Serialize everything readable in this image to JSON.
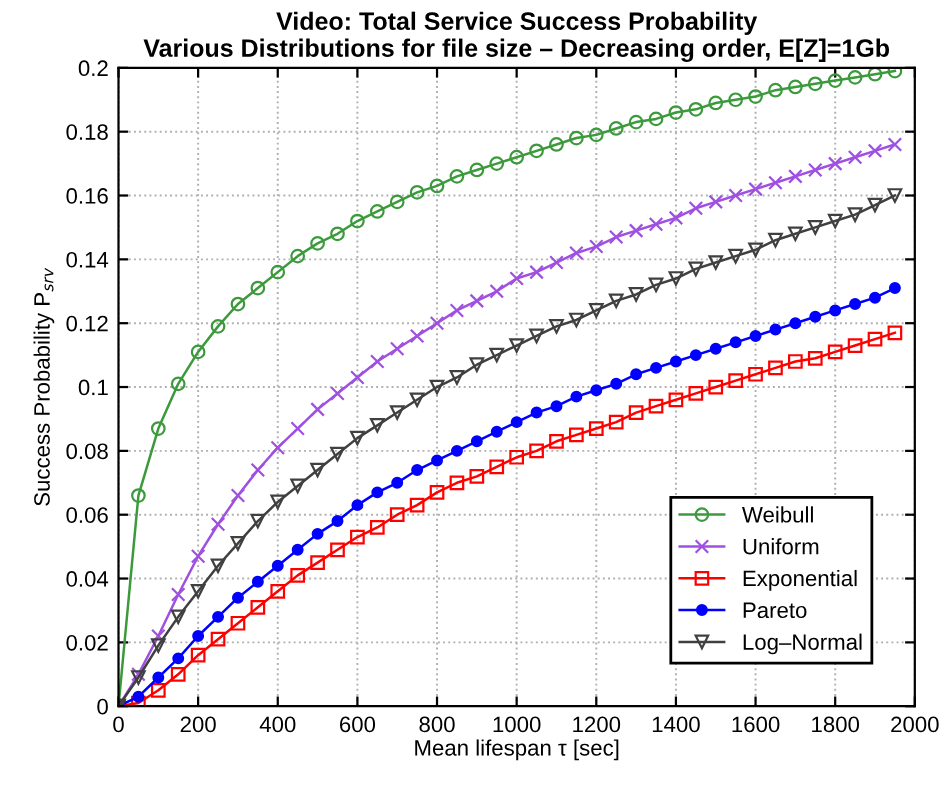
{
  "chart_data": {
    "type": "line",
    "title": "Video: Total Service Success Probability\nVarious Distributions for file size – Decreasing order, E[Z]=1Gb",
    "xlabel": "Mean lifespan τ [sec]",
    "ylabel": "Success Probability P$_{srv}$",
    "x": [
      0,
      50,
      100,
      150,
      200,
      250,
      300,
      350,
      400,
      450,
      500,
      550,
      600,
      650,
      700,
      750,
      800,
      850,
      900,
      950,
      1000,
      1050,
      1100,
      1150,
      1200,
      1250,
      1300,
      1350,
      1400,
      1450,
      1500,
      1550,
      1600,
      1650,
      1700,
      1750,
      1800,
      1850,
      1900,
      1950
    ],
    "series": [
      {
        "name": "Weibull",
        "color": "#3c9a3c",
        "marker": "circle",
        "values": [
          0,
          0.066,
          0.087,
          0.101,
          0.111,
          0.119,
          0.126,
          0.131,
          0.136,
          0.141,
          0.145,
          0.148,
          0.152,
          0.155,
          0.158,
          0.161,
          0.163,
          0.166,
          0.168,
          0.17,
          0.172,
          0.174,
          0.176,
          0.178,
          0.179,
          0.181,
          0.183,
          0.184,
          0.186,
          0.187,
          0.189,
          0.19,
          0.191,
          0.193,
          0.194,
          0.195,
          0.196,
          0.197,
          0.198,
          0.199
        ]
      },
      {
        "name": "Uniform",
        "color": "#a050e0",
        "marker": "cross",
        "values": [
          0,
          0.01,
          0.022,
          0.035,
          0.047,
          0.057,
          0.066,
          0.074,
          0.081,
          0.087,
          0.093,
          0.098,
          0.103,
          0.108,
          0.112,
          0.116,
          0.12,
          0.124,
          0.127,
          0.13,
          0.134,
          0.136,
          0.139,
          0.142,
          0.144,
          0.147,
          0.149,
          0.151,
          0.153,
          0.156,
          0.158,
          0.16,
          0.162,
          0.164,
          0.166,
          0.168,
          0.17,
          0.172,
          0.174,
          0.176
        ]
      },
      {
        "name": "Exponential",
        "color": "#ff0000",
        "marker": "square",
        "values": [
          0,
          0.001,
          0.005,
          0.01,
          0.016,
          0.021,
          0.026,
          0.031,
          0.036,
          0.041,
          0.045,
          0.049,
          0.053,
          0.056,
          0.06,
          0.063,
          0.067,
          0.07,
          0.072,
          0.075,
          0.078,
          0.08,
          0.083,
          0.085,
          0.087,
          0.089,
          0.092,
          0.094,
          0.096,
          0.098,
          0.1,
          0.102,
          0.104,
          0.106,
          0.108,
          0.109,
          0.111,
          0.113,
          0.115,
          0.117
        ]
      },
      {
        "name": "Pareto",
        "color": "#0000ff",
        "marker": "circle",
        "values": [
          0,
          0.003,
          0.009,
          0.015,
          0.022,
          0.028,
          0.034,
          0.039,
          0.044,
          0.049,
          0.054,
          0.058,
          0.063,
          0.067,
          0.07,
          0.074,
          0.077,
          0.08,
          0.083,
          0.086,
          0.089,
          0.092,
          0.094,
          0.097,
          0.099,
          0.101,
          0.104,
          0.106,
          0.108,
          0.11,
          0.112,
          0.114,
          0.116,
          0.118,
          0.12,
          0.122,
          0.124,
          0.126,
          0.128,
          0.131
        ]
      },
      {
        "name": "Log–Normal",
        "color": "#404040",
        "marker": "triangle",
        "values": [
          0,
          0.009,
          0.019,
          0.028,
          0.036,
          0.044,
          0.051,
          0.058,
          0.064,
          0.069,
          0.074,
          0.079,
          0.084,
          0.088,
          0.092,
          0.096,
          0.1,
          0.103,
          0.107,
          0.11,
          0.113,
          0.116,
          0.119,
          0.121,
          0.124,
          0.127,
          0.129,
          0.132,
          0.134,
          0.137,
          0.139,
          0.141,
          0.143,
          0.146,
          0.148,
          0.15,
          0.152,
          0.154,
          0.157,
          0.16
        ]
      }
    ],
    "xlim": [
      0,
      2000
    ],
    "xticks": [
      0,
      200,
      400,
      600,
      800,
      1000,
      1200,
      1400,
      1600,
      1800,
      2000
    ],
    "ylim": [
      0,
      0.2
    ],
    "yticks": [
      0,
      0.02,
      0.04,
      0.06,
      0.08,
      0.1,
      0.12,
      0.14,
      0.16,
      0.18,
      0.2
    ],
    "grid": true,
    "legend": "bottom right",
    "line_style": "solid"
  }
}
